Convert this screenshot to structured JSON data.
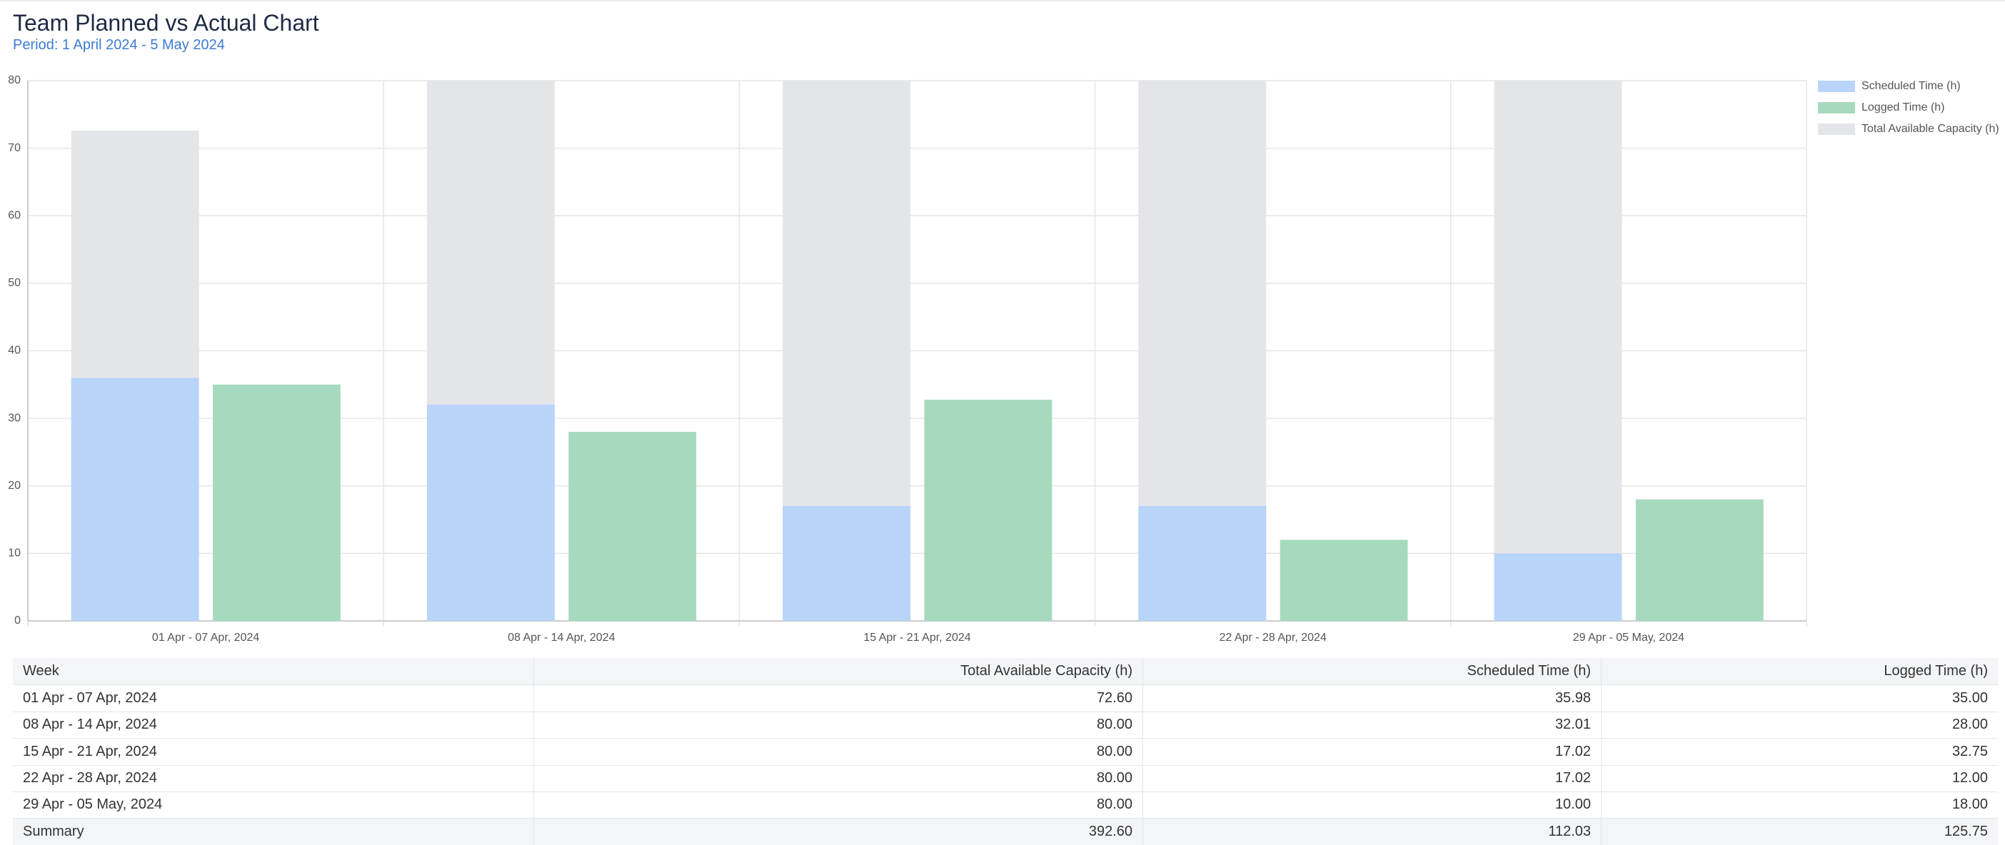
{
  "chart_data": {
    "type": "bar",
    "title": "Team Planned vs Actual Chart",
    "subtitle": "Period: 1 April 2024 - 5 May 2024",
    "categories": [
      "01 Apr - 07 Apr, 2024",
      "08 Apr - 14 Apr, 2024",
      "15 Apr - 21 Apr, 2024",
      "22 Apr - 28 Apr, 2024",
      "29 Apr - 05 May, 2024"
    ],
    "series": [
      {
        "name": "Scheduled Time (h)",
        "color": "#b8d4f8",
        "values": [
          35.98,
          32.01,
          17.02,
          17.02,
          10.0
        ]
      },
      {
        "name": "Logged Time (h)",
        "color": "#a6dabf",
        "values": [
          35,
          28,
          32.75,
          12,
          18
        ]
      },
      {
        "name": "Total Available Capacity (h)",
        "color": "#e4e5e9",
        "values": [
          72.6,
          80,
          80,
          80,
          80
        ]
      }
    ],
    "ylim": [
      0,
      80
    ],
    "yticks": [
      0,
      10,
      20,
      30,
      40,
      50,
      60,
      70,
      80
    ],
    "grid": true,
    "legend": "right"
  },
  "table": {
    "columns": [
      "Week",
      "Total Available Capacity (h)",
      "Scheduled Time (h)",
      "Logged Time (h)"
    ],
    "rows": [
      [
        "01 Apr - 07 Apr, 2024",
        "72.60",
        "35.98",
        "35.00"
      ],
      [
        "08 Apr - 14 Apr, 2024",
        "80.00",
        "32.01",
        "28.00"
      ],
      [
        "15 Apr - 21 Apr, 2024",
        "80.00",
        "17.02",
        "32.75"
      ],
      [
        "22 Apr - 28 Apr, 2024",
        "80.00",
        "17.02",
        "12.00"
      ],
      [
        "29 Apr - 05 May, 2024",
        "80.00",
        "10.00",
        "18.00"
      ]
    ],
    "summary": [
      "Summary",
      "392.60",
      "112.03",
      "125.75"
    ]
  }
}
